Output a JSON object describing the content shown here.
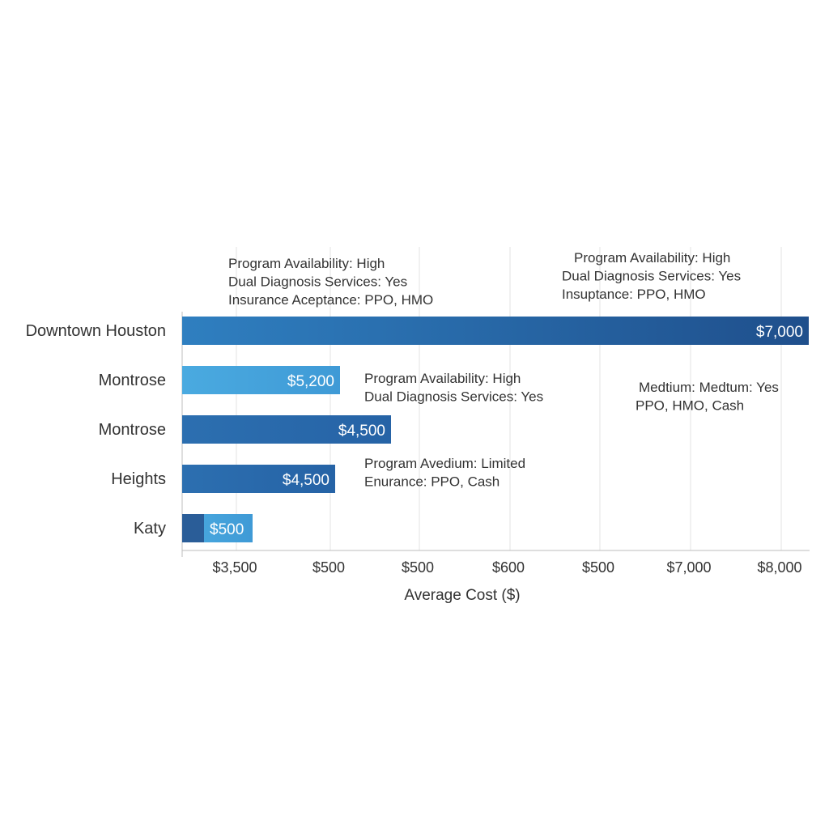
{
  "chart_data": {
    "type": "bar",
    "orientation": "horizontal",
    "title": "",
    "xlabel": "Average Cost ($)",
    "ylabel": "",
    "grid": true,
    "categories": [
      "Downtown Houston",
      "Montrose",
      "Montrose",
      "Heights",
      "Katy"
    ],
    "values": [
      7000,
      5200,
      4500,
      4500,
      500
    ],
    "value_labels": [
      "$7,000",
      "$5,200",
      "$4,500",
      "$4,500",
      "$500"
    ],
    "x_tick_labels": [
      "$3,500",
      "$500",
      "$500",
      "$600",
      "$500",
      "$7,000",
      "$8,000"
    ],
    "bar_colors": [
      "#2a73b6",
      "#45a5dd",
      "#2a69aa",
      "#2d6eae",
      "#4aa7dc"
    ],
    "katy_accent_color": "#2a5d98",
    "annotations": [
      {
        "lines": [
          "Program Availability: High",
          "Dual Diagnosis Services: Yes",
          "Insurance Aceptance: PPO, HMO"
        ]
      },
      {
        "lines": [
          "Program Availability: High",
          "Dual Diagnosis Services: Yes",
          "Insuptance: PPO, HMO"
        ]
      },
      {
        "lines": [
          "Program Availability: High",
          "Dual Diagnosis Services: Yes"
        ]
      },
      {
        "lines": [
          "Medtium: Medtum: Yes",
          "PPO, HMO, Cash"
        ]
      },
      {
        "lines": [
          "Program Avedium: Limited",
          "Enurance: PPO, Cash"
        ]
      }
    ]
  }
}
